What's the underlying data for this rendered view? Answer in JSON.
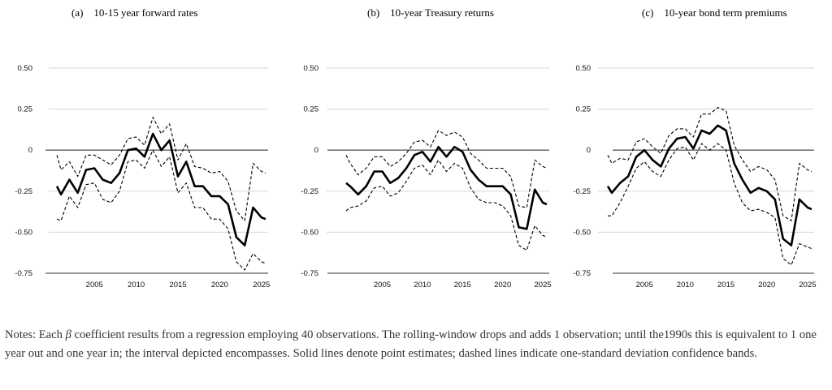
{
  "notes": {
    "prefix": "Notes: Each ",
    "symbol": "β",
    "text": " coefficient results from a regression employing 40 observations. The rolling-window drops and adds 1 observation; until the1990s this is equivalent to 1 one year out and one year in; the interval depicted encompasses. Solid lines denote point estimates; dashed lines indicate one-standard deviation confidence bands."
  },
  "chart_data": [
    {
      "type": "line",
      "title": "(a)    10-15 year forward rates",
      "xlabel": "",
      "ylabel": "",
      "xlim": [
        2000.5,
        2025.8
      ],
      "ylim": [
        -0.75,
        0.5
      ],
      "x_ticks": [
        2005,
        2010,
        2015,
        2020,
        2025
      ],
      "x_tick_labels": [
        "2005",
        "2010",
        "2015",
        "2020",
        "2025"
      ],
      "y_ticks": [
        0.5,
        0.25,
        0,
        -0.25,
        -0.5,
        -0.75
      ],
      "y_tick_labels": [
        "0.50",
        "0.25",
        "0",
        "-0.25",
        "-0.50",
        "-0.75"
      ],
      "grid": true,
      "legend": "none",
      "x": [
        2000.5,
        2001,
        2002,
        2003,
        2004,
        2005,
        2006,
        2007,
        2008,
        2009,
        2010,
        2011,
        2012,
        2013,
        2014,
        2015,
        2016,
        2017,
        2018,
        2019,
        2020,
        2021,
        2022,
        2023,
        2024,
        2025,
        2025.5
      ],
      "series": [
        {
          "role": "point",
          "style": "solid",
          "values": [
            -0.22,
            -0.27,
            -0.18,
            -0.26,
            -0.12,
            -0.11,
            -0.18,
            -0.2,
            -0.14,
            0,
            0.01,
            -0.04,
            0.1,
            0,
            0.06,
            -0.16,
            -0.07,
            -0.22,
            -0.22,
            -0.28,
            -0.28,
            -0.33,
            -0.53,
            -0.58,
            -0.35,
            -0.41,
            -0.42
          ]
        },
        {
          "role": "upper",
          "style": "dashed",
          "values": [
            -0.03,
            -0.12,
            -0.07,
            -0.16,
            -0.03,
            -0.03,
            -0.06,
            -0.09,
            -0.03,
            0.07,
            0.08,
            0.03,
            0.2,
            0.1,
            0.16,
            -0.06,
            0.04,
            -0.1,
            -0.11,
            -0.14,
            -0.13,
            -0.19,
            -0.37,
            -0.43,
            -0.08,
            -0.13,
            -0.14
          ]
        },
        {
          "role": "lower",
          "style": "dashed",
          "values": [
            -0.42,
            -0.43,
            -0.28,
            -0.35,
            -0.21,
            -0.2,
            -0.3,
            -0.32,
            -0.25,
            -0.07,
            -0.06,
            -0.11,
            0,
            -0.1,
            -0.04,
            -0.26,
            -0.2,
            -0.35,
            -0.35,
            -0.42,
            -0.42,
            -0.48,
            -0.68,
            -0.73,
            -0.63,
            -0.68,
            -0.69
          ]
        }
      ]
    },
    {
      "type": "line",
      "title": "(b)    10-year Treasury returns",
      "xlabel": "",
      "ylabel": "",
      "xlim": [
        2000.5,
        2025.8
      ],
      "ylim": [
        -0.75,
        0.5
      ],
      "x_ticks": [
        2005,
        2010,
        2015,
        2020,
        2025
      ],
      "x_tick_labels": [
        "2005",
        "2010",
        "2015",
        "2020",
        "2025"
      ],
      "y_ticks": [
        0.5,
        0.25,
        0,
        -0.25,
        -0.5,
        -0.75
      ],
      "y_tick_labels": [
        "0.50",
        "0.25",
        "0",
        "-0.25",
        "-0.50",
        "-0.75"
      ],
      "grid": true,
      "legend": "none",
      "x": [
        2000.5,
        2001,
        2002,
        2003,
        2004,
        2005,
        2006,
        2007,
        2008,
        2009,
        2010,
        2011,
        2012,
        2013,
        2014,
        2015,
        2016,
        2017,
        2018,
        2019,
        2020,
        2021,
        2022,
        2023,
        2024,
        2025,
        2025.5
      ],
      "series": [
        {
          "role": "point",
          "style": "solid",
          "values": [
            -0.2,
            -0.22,
            -0.27,
            -0.22,
            -0.13,
            -0.13,
            -0.2,
            -0.17,
            -0.11,
            -0.03,
            -0.01,
            -0.07,
            0.02,
            -0.04,
            0.02,
            -0.01,
            -0.12,
            -0.18,
            -0.22,
            -0.22,
            -0.22,
            -0.27,
            -0.47,
            -0.48,
            -0.24,
            -0.32,
            -0.33
          ]
        },
        {
          "role": "upper",
          "style": "dashed",
          "values": [
            -0.03,
            -0.08,
            -0.15,
            -0.11,
            -0.04,
            -0.04,
            -0.1,
            -0.07,
            -0.02,
            0.05,
            0.06,
            0.02,
            0.12,
            0.09,
            0.11,
            0.08,
            -0.02,
            -0.06,
            -0.11,
            -0.11,
            -0.11,
            -0.16,
            -0.34,
            -0.35,
            -0.06,
            -0.1,
            -0.11
          ]
        },
        {
          "role": "lower",
          "style": "dashed",
          "values": [
            -0.37,
            -0.35,
            -0.34,
            -0.31,
            -0.23,
            -0.22,
            -0.28,
            -0.26,
            -0.19,
            -0.11,
            -0.09,
            -0.15,
            -0.06,
            -0.13,
            -0.08,
            -0.11,
            -0.23,
            -0.3,
            -0.32,
            -0.32,
            -0.34,
            -0.4,
            -0.58,
            -0.61,
            -0.46,
            -0.52,
            -0.53
          ]
        }
      ]
    },
    {
      "type": "line",
      "title": "(c)    10-year bond term premiums",
      "xlabel": "",
      "ylabel": "",
      "xlim": [
        2000.5,
        2025.8
      ],
      "ylim": [
        -0.75,
        0.5
      ],
      "x_ticks": [
        2005,
        2010,
        2015,
        2020,
        2025
      ],
      "x_tick_labels": [
        "2005",
        "2010",
        "2015",
        "2020",
        "2025"
      ],
      "y_ticks": [
        0.5,
        0.25,
        0,
        -0.25,
        -0.5,
        -0.75
      ],
      "y_tick_labels": [
        "0.50",
        "0.25",
        "0",
        "-0.25",
        "-0.50",
        "-0.75"
      ],
      "grid": true,
      "legend": "none",
      "x": [
        2000.5,
        2001,
        2002,
        2003,
        2004,
        2005,
        2006,
        2007,
        2008,
        2009,
        2010,
        2011,
        2012,
        2013,
        2014,
        2015,
        2016,
        2017,
        2018,
        2019,
        2020,
        2021,
        2022,
        2023,
        2024,
        2025,
        2025.5
      ],
      "series": [
        {
          "role": "point",
          "style": "solid",
          "values": [
            -0.22,
            -0.26,
            -0.2,
            -0.16,
            -0.04,
            0,
            -0.06,
            -0.1,
            0.01,
            0.07,
            0.08,
            0.01,
            0.12,
            0.1,
            0.15,
            0.12,
            -0.08,
            -0.18,
            -0.26,
            -0.23,
            -0.25,
            -0.3,
            -0.54,
            -0.58,
            -0.3,
            -0.35,
            -0.36
          ]
        },
        {
          "role": "upper",
          "style": "dashed",
          "values": [
            -0.03,
            -0.08,
            -0.05,
            -0.06,
            0.05,
            0.07,
            0.02,
            -0.02,
            0.09,
            0.13,
            0.13,
            0.08,
            0.22,
            0.22,
            0.26,
            0.24,
            0.03,
            -0.06,
            -0.13,
            -0.1,
            -0.12,
            -0.18,
            -0.4,
            -0.43,
            -0.08,
            -0.12,
            -0.13
          ]
        },
        {
          "role": "lower",
          "style": "dashed",
          "values": [
            -0.4,
            -0.4,
            -0.32,
            -0.22,
            -0.11,
            -0.07,
            -0.13,
            -0.16,
            -0.06,
            0.01,
            0.02,
            -0.06,
            0.04,
            0,
            0.04,
            0,
            -0.2,
            -0.32,
            -0.37,
            -0.36,
            -0.38,
            -0.41,
            -0.66,
            -0.7,
            -0.57,
            -0.59,
            -0.6
          ]
        }
      ]
    }
  ]
}
